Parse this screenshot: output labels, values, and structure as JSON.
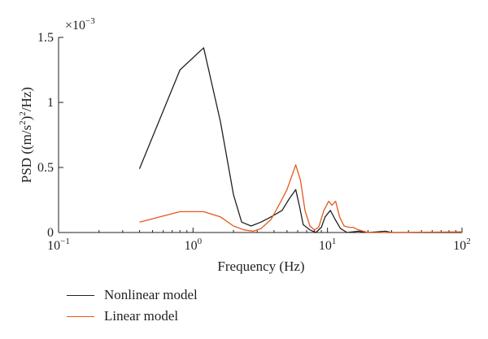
{
  "chart_data": {
    "type": "line",
    "xlabel": "Frequency (Hz)",
    "ylabel_parts": {
      "a": "PSD ((m/s",
      "sup1": "2",
      "b": ")",
      "sup2": "2",
      "c": "/Hz)"
    },
    "x_scale": "log",
    "xlim": [
      0.1,
      100
    ],
    "x_ticks": [
      {
        "value": 0.1,
        "base": "10",
        "exp": "−1"
      },
      {
        "value": 1,
        "base": "10",
        "exp": "0"
      },
      {
        "value": 10,
        "base": "10",
        "exp": "1"
      },
      {
        "value": 100,
        "base": "10",
        "exp": "2"
      }
    ],
    "ylim": [
      0,
      1.5
    ],
    "y_ticks": [
      {
        "value": 0,
        "label": "0"
      },
      {
        "value": 0.5,
        "label": "0.5"
      },
      {
        "value": 1,
        "label": "1"
      },
      {
        "value": 1.5,
        "label": "1.5"
      }
    ],
    "y_multiplier": {
      "base": "×10",
      "exp": "−3"
    },
    "grid": false,
    "legend_position": "bottom-left",
    "series": [
      {
        "name": "Nonlinear model",
        "color": "#231f20",
        "points": [
          [
            0.4,
            0.49
          ],
          [
            0.8,
            1.25
          ],
          [
            1.2,
            1.42
          ],
          [
            1.6,
            0.85
          ],
          [
            2.0,
            0.29
          ],
          [
            2.3,
            0.08
          ],
          [
            2.7,
            0.05
          ],
          [
            3.2,
            0.08
          ],
          [
            3.8,
            0.12
          ],
          [
            4.6,
            0.17
          ],
          [
            5.2,
            0.26
          ],
          [
            5.8,
            0.33
          ],
          [
            6.2,
            0.2
          ],
          [
            6.6,
            0.06
          ],
          [
            7.4,
            0.02
          ],
          [
            8.2,
            0.0
          ],
          [
            9.0,
            0.04
          ],
          [
            9.6,
            0.12
          ],
          [
            10.5,
            0.17
          ],
          [
            11.4,
            0.1
          ],
          [
            12.5,
            0.03
          ],
          [
            14,
            0.0
          ],
          [
            17,
            0.01
          ],
          [
            20,
            0.0
          ],
          [
            27,
            0.01
          ],
          [
            30,
            0.0
          ],
          [
            100,
            0.0
          ]
        ]
      },
      {
        "name": "Linear model",
        "color": "#e2591d",
        "points": [
          [
            0.4,
            0.08
          ],
          [
            0.8,
            0.16
          ],
          [
            1.2,
            0.16
          ],
          [
            1.6,
            0.12
          ],
          [
            2.0,
            0.05
          ],
          [
            2.4,
            0.02
          ],
          [
            2.8,
            0.01
          ],
          [
            3.2,
            0.03
          ],
          [
            3.8,
            0.1
          ],
          [
            4.4,
            0.22
          ],
          [
            5.0,
            0.33
          ],
          [
            5.8,
            0.52
          ],
          [
            6.3,
            0.4
          ],
          [
            6.8,
            0.17
          ],
          [
            7.4,
            0.05
          ],
          [
            8.0,
            0.02
          ],
          [
            8.6,
            0.04
          ],
          [
            9.4,
            0.17
          ],
          [
            10.2,
            0.24
          ],
          [
            10.8,
            0.21
          ],
          [
            11.5,
            0.24
          ],
          [
            12.3,
            0.12
          ],
          [
            13.3,
            0.05
          ],
          [
            14.5,
            0.04
          ],
          [
            15.5,
            0.04
          ],
          [
            17,
            0.02
          ],
          [
            20,
            0.0
          ],
          [
            30,
            0.0
          ],
          [
            100,
            0.005
          ]
        ]
      }
    ]
  }
}
